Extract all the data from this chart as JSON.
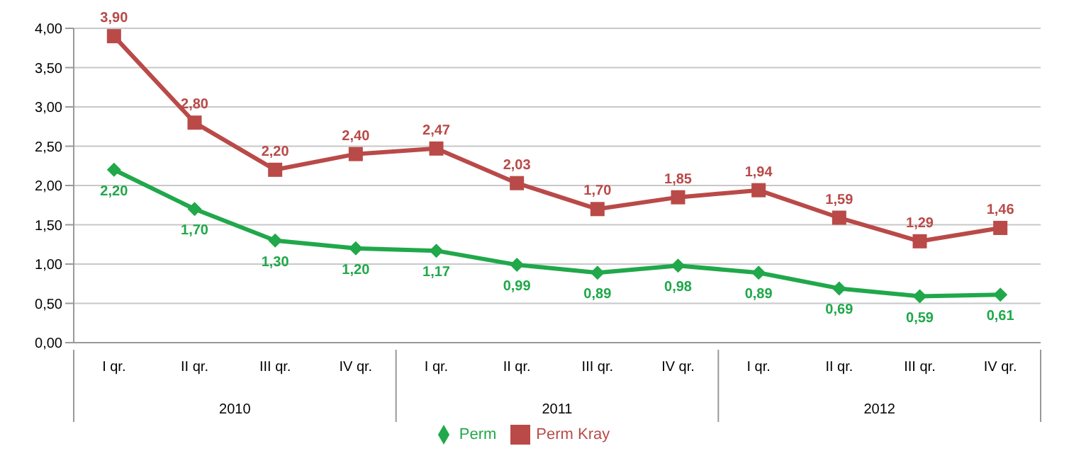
{
  "chart_data": {
    "type": "line",
    "categories": [
      "I qr.",
      "II qr.",
      "III qr.",
      "IV qr.",
      "I qr.",
      "II qr.",
      "III qr.",
      "IV qr.",
      "I qr.",
      "II qr.",
      "III qr.",
      "IV qr."
    ],
    "series": [
      {
        "name": "Perm",
        "color": "#20a84a",
        "marker": "diamond",
        "values": [
          2.2,
          1.7,
          1.3,
          1.2,
          1.17,
          0.99,
          0.89,
          0.98,
          0.89,
          0.69,
          0.59,
          0.61
        ],
        "value_labels": [
          "2,20",
          "1,70",
          "1,30",
          "1,20",
          "1,17",
          "0,99",
          "0,89",
          "0,98",
          "0,89",
          "0,69",
          "0,59",
          "0,61"
        ]
      },
      {
        "name": "Perm Kray",
        "color": "#b94a48",
        "marker": "square",
        "values": [
          3.9,
          2.8,
          2.2,
          2.4,
          2.47,
          2.03,
          1.7,
          1.85,
          1.94,
          1.59,
          1.29,
          1.46
        ],
        "value_labels": [
          "3,90",
          "2,80",
          "2,20",
          "2,40",
          "2,47",
          "2,03",
          "1,70",
          "1,85",
          "1,94",
          "1,59",
          "1,29",
          "1,46"
        ]
      }
    ],
    "annotations": [
      "2010",
      "2011",
      "2012"
    ],
    "ylim": [
      0,
      4
    ],
    "yticks": [
      {
        "value": 0,
        "label": "0,00"
      },
      {
        "value": 0.5,
        "label": "0,50"
      },
      {
        "value": 1,
        "label": "1,00"
      },
      {
        "value": 1.5,
        "label": "1,50"
      },
      {
        "value": 2,
        "label": "2,00"
      },
      {
        "value": 2.5,
        "label": "2,50"
      },
      {
        "value": 3,
        "label": "3,00"
      },
      {
        "value": 3.5,
        "label": "3,50"
      },
      {
        "value": 4,
        "label": "4,00"
      }
    ],
    "grid": "y",
    "legend": "bottom",
    "line_style": "solid"
  }
}
